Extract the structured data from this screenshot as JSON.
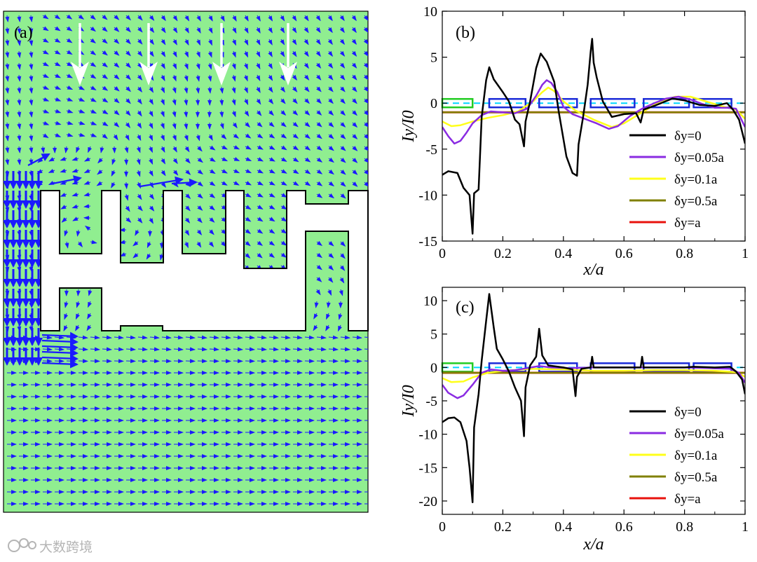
{
  "panel_a": {
    "label": "(a)",
    "field_color": "#90ee90",
    "arrow_color": "#1a1aff",
    "incident_arrow_color": "#ffffff"
  },
  "watermark": {
    "text": "大数跨境",
    "icon": "cloud-logo-icon"
  },
  "chart_data": [
    {
      "type": "line",
      "panel": "(b)",
      "xlabel": "x/a",
      "ylabel": "Iy/I0",
      "xlim": [
        0,
        1
      ],
      "ylim": [
        -15,
        10
      ],
      "x_ticks": [
        0,
        0.2,
        0.4,
        0.6,
        0.8,
        1
      ],
      "x_tick_labels": [
        "0",
        "0.2",
        "0.4",
        "0.6",
        "0.8",
        "1"
      ],
      "y_ticks": [
        10,
        5,
        0,
        -5,
        -10,
        -15
      ],
      "y_tick_labels": [
        "10",
        "5",
        "0",
        "-5",
        "-10",
        "-15"
      ],
      "legend_position": "bottom-right",
      "series": [
        {
          "name": "δy=0",
          "color": "#000000",
          "points": [
            [
              0,
              -7.8
            ],
            [
              0.02,
              -7.4
            ],
            [
              0.05,
              -7.6
            ],
            [
              0.07,
              -9.2
            ],
            [
              0.09,
              -10
            ],
            [
              0.1,
              -14.2
            ],
            [
              0.105,
              -9.8
            ],
            [
              0.12,
              -9.4
            ],
            [
              0.13,
              -1.5
            ],
            [
              0.145,
              2.5
            ],
            [
              0.155,
              3.9
            ],
            [
              0.17,
              2.6
            ],
            [
              0.2,
              1.2
            ],
            [
              0.22,
              0.2
            ],
            [
              0.24,
              -1.8
            ],
            [
              0.255,
              -2.3
            ],
            [
              0.27,
              -4.7
            ],
            [
              0.275,
              -2
            ],
            [
              0.29,
              0.2
            ],
            [
              0.31,
              3.8
            ],
            [
              0.325,
              5.4
            ],
            [
              0.345,
              4.5
            ],
            [
              0.37,
              2.3
            ],
            [
              0.385,
              -1
            ],
            [
              0.41,
              -5.8
            ],
            [
              0.43,
              -7.6
            ],
            [
              0.445,
              -7.9
            ],
            [
              0.45,
              -4.5
            ],
            [
              0.465,
              -1.5
            ],
            [
              0.48,
              2
            ],
            [
              0.49,
              5.6
            ],
            [
              0.495,
              7
            ],
            [
              0.5,
              4.4
            ],
            [
              0.51,
              2.8
            ],
            [
              0.53,
              0.2
            ],
            [
              0.56,
              -1.5
            ],
            [
              0.6,
              -1.2
            ],
            [
              0.64,
              -1.1
            ],
            [
              0.655,
              -2.1
            ],
            [
              0.665,
              -0.7
            ],
            [
              0.7,
              -0.3
            ],
            [
              0.76,
              0.5
            ],
            [
              0.8,
              0.3
            ],
            [
              0.85,
              -0.2
            ],
            [
              0.9,
              -0.3
            ],
            [
              0.94,
              0
            ],
            [
              0.96,
              -0.7
            ],
            [
              0.98,
              -1.8
            ],
            [
              1,
              -4.4
            ]
          ]
        },
        {
          "name": "δy=0.05a",
          "color": "#8a2be2",
          "points": [
            [
              0,
              -2.6
            ],
            [
              0.02,
              -3.6
            ],
            [
              0.04,
              -4.4
            ],
            [
              0.06,
              -4.1
            ],
            [
              0.08,
              -3.2
            ],
            [
              0.1,
              -2.2
            ],
            [
              0.13,
              -1.3
            ],
            [
              0.16,
              -0.9
            ],
            [
              0.2,
              -1.0
            ],
            [
              0.24,
              -1.1
            ],
            [
              0.28,
              -0.6
            ],
            [
              0.31,
              0.8
            ],
            [
              0.33,
              2
            ],
            [
              0.345,
              2.5
            ],
            [
              0.36,
              2.2
            ],
            [
              0.38,
              1.2
            ],
            [
              0.4,
              -0.4
            ],
            [
              0.43,
              -1.2
            ],
            [
              0.47,
              -1.7
            ],
            [
              0.51,
              -2.2
            ],
            [
              0.55,
              -2.8
            ],
            [
              0.58,
              -2.5
            ],
            [
              0.62,
              -1.4
            ],
            [
              0.66,
              -0.6
            ],
            [
              0.7,
              0
            ],
            [
              0.74,
              0.5
            ],
            [
              0.78,
              0.7
            ],
            [
              0.82,
              0.4
            ],
            [
              0.86,
              -0.1
            ],
            [
              0.9,
              -0.5
            ],
            [
              0.94,
              -0.5
            ],
            [
              0.97,
              -0.6
            ],
            [
              1,
              -2.6
            ]
          ]
        },
        {
          "name": "δy=0.1a",
          "color": "#ffff1a",
          "points": [
            [
              0,
              -2
            ],
            [
              0.03,
              -2.5
            ],
            [
              0.06,
              -2.4
            ],
            [
              0.1,
              -2
            ],
            [
              0.15,
              -1.6
            ],
            [
              0.2,
              -1.3
            ],
            [
              0.25,
              -0.9
            ],
            [
              0.3,
              0.2
            ],
            [
              0.33,
              1.2
            ],
            [
              0.35,
              1.7
            ],
            [
              0.37,
              1.3
            ],
            [
              0.4,
              0.2
            ],
            [
              0.44,
              -0.8
            ],
            [
              0.5,
              -1.8
            ],
            [
              0.56,
              -2.6
            ],
            [
              0.6,
              -2.2
            ],
            [
              0.66,
              -1
            ],
            [
              0.72,
              0.2
            ],
            [
              0.77,
              0.7
            ],
            [
              0.82,
              0.7
            ],
            [
              0.88,
              0.1
            ],
            [
              0.93,
              -0.4
            ],
            [
              0.97,
              -0.7
            ],
            [
              1,
              -1.7
            ]
          ]
        },
        {
          "name": "δy=0.5a",
          "color": "#808000",
          "points": [
            [
              0,
              -1.0
            ],
            [
              1,
              -1.0
            ]
          ]
        },
        {
          "name": "δy=a",
          "color": "#e8120c",
          "points": [
            [
              0,
              -1.0
            ],
            [
              1,
              -1.0
            ]
          ]
        }
      ]
    },
    {
      "type": "line",
      "panel": "(c)",
      "xlabel": "x/a",
      "ylabel": "Iy/I0",
      "xlim": [
        0,
        1
      ],
      "ylim": [
        -22,
        12
      ],
      "x_ticks": [
        0,
        0.2,
        0.4,
        0.6,
        0.8,
        1
      ],
      "x_tick_labels": [
        "0",
        "0.2",
        "0.4",
        "0.6",
        "0.8",
        "1"
      ],
      "y_ticks": [
        10,
        5,
        0,
        -5,
        -10,
        -15,
        -20
      ],
      "y_tick_labels": [
        "10",
        "5",
        "0",
        "-5",
        "-10",
        "-15",
        "-20"
      ],
      "legend_position": "bottom-right",
      "series": [
        {
          "name": "δy=0",
          "color": "#000000",
          "points": [
            [
              0,
              -8.2
            ],
            [
              0.02,
              -7.6
            ],
            [
              0.04,
              -7.5
            ],
            [
              0.06,
              -8.2
            ],
            [
              0.08,
              -11
            ],
            [
              0.09,
              -15
            ],
            [
              0.1,
              -20.2
            ],
            [
              0.105,
              -9
            ],
            [
              0.12,
              -4
            ],
            [
              0.13,
              1
            ],
            [
              0.145,
              7
            ],
            [
              0.155,
              11
            ],
            [
              0.17,
              6
            ],
            [
              0.18,
              2.8
            ],
            [
              0.2,
              1.2
            ],
            [
              0.22,
              -0.6
            ],
            [
              0.24,
              -3
            ],
            [
              0.26,
              -5
            ],
            [
              0.27,
              -10.3
            ],
            [
              0.275,
              -3
            ],
            [
              0.29,
              0.3
            ],
            [
              0.31,
              1.6
            ],
            [
              0.32,
              5.8
            ],
            [
              0.33,
              1.8
            ],
            [
              0.35,
              0.3
            ],
            [
              0.4,
              0
            ],
            [
              0.43,
              -0.3
            ],
            [
              0.44,
              -4.3
            ],
            [
              0.445,
              -1.4
            ],
            [
              0.46,
              -0.2
            ],
            [
              0.49,
              0
            ],
            [
              0.495,
              1.6
            ],
            [
              0.5,
              0
            ],
            [
              0.6,
              0
            ],
            [
              0.655,
              0
            ],
            [
              0.66,
              1.6
            ],
            [
              0.665,
              0
            ],
            [
              0.8,
              0
            ],
            [
              0.83,
              0.1
            ],
            [
              0.9,
              0
            ],
            [
              0.95,
              0.1
            ],
            [
              0.97,
              -0.6
            ],
            [
              0.99,
              -1.8
            ],
            [
              1,
              -4
            ]
          ]
        },
        {
          "name": "δy=0.05a",
          "color": "#8a2be2",
          "points": [
            [
              0,
              -2.6
            ],
            [
              0.02,
              -3.8
            ],
            [
              0.05,
              -4.6
            ],
            [
              0.07,
              -4.2
            ],
            [
              0.1,
              -2.6
            ],
            [
              0.13,
              -0.8
            ],
            [
              0.16,
              -0.3
            ],
            [
              0.2,
              -0.5
            ],
            [
              0.24,
              -0.4
            ],
            [
              0.28,
              -0.1
            ],
            [
              0.32,
              0.2
            ],
            [
              0.36,
              0
            ],
            [
              0.42,
              -0.1
            ],
            [
              0.5,
              0
            ],
            [
              0.6,
              0
            ],
            [
              0.7,
              0
            ],
            [
              0.8,
              0
            ],
            [
              0.88,
              -0.1
            ],
            [
              0.95,
              -0.2
            ],
            [
              0.98,
              -0.8
            ],
            [
              1,
              -2.3
            ]
          ]
        },
        {
          "name": "δy=0.1a",
          "color": "#ffff1a",
          "points": [
            [
              0,
              -1.6
            ],
            [
              0.03,
              -2.2
            ],
            [
              0.07,
              -2.1
            ],
            [
              0.1,
              -1.5
            ],
            [
              0.15,
              -0.8
            ],
            [
              0.2,
              -0.5
            ],
            [
              0.3,
              -0.2
            ],
            [
              0.4,
              -0.3
            ],
            [
              0.5,
              -0.5
            ],
            [
              0.6,
              -0.5
            ],
            [
              0.7,
              -0.4
            ],
            [
              0.8,
              -0.4
            ],
            [
              0.9,
              -0.5
            ],
            [
              0.97,
              -0.7
            ],
            [
              1,
              -1.4
            ]
          ]
        },
        {
          "name": "δy=0.5a",
          "color": "#808000",
          "points": [
            [
              0,
              -0.8
            ],
            [
              1,
              -0.8
            ]
          ]
        },
        {
          "name": "δy=a",
          "color": "#e8120c",
          "points": [
            [
              0,
              -0.8
            ],
            [
              1,
              -0.8
            ]
          ]
        }
      ]
    }
  ]
}
